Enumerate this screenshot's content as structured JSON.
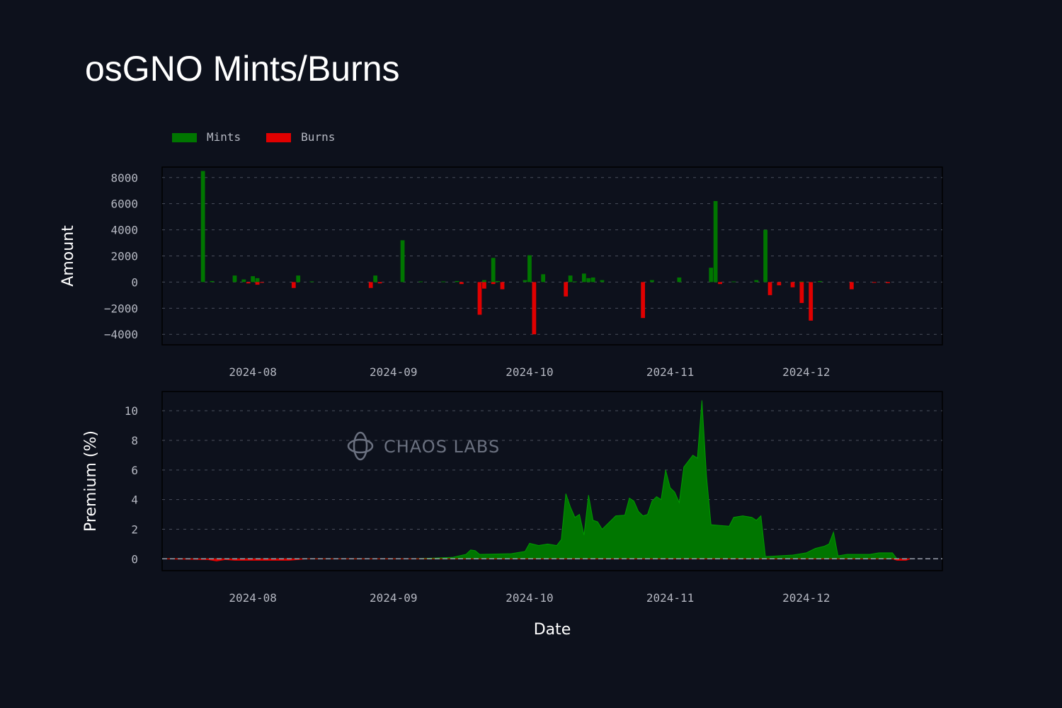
{
  "page": {
    "title": "osGNO Mints/Burns"
  },
  "colors": {
    "background": "#0d111c",
    "mints": "#007600",
    "burns": "#e00000",
    "grid": "#4a4f5c",
    "text": "#b5b8c2"
  },
  "legend": {
    "items": [
      {
        "label": "Mints",
        "color": "#007600"
      },
      {
        "label": "Burns",
        "color": "#e00000"
      }
    ]
  },
  "watermark": {
    "text": "CHAOS LABS"
  },
  "chart_data": [
    {
      "type": "bar",
      "ylabel": "Amount",
      "xlabel": "",
      "ylim": [
        -4800,
        8800
      ],
      "yticks": [
        8000,
        6000,
        4000,
        2000,
        0,
        -2000,
        -4000
      ],
      "ytick_labels": [
        "8000",
        "6000",
        "4000",
        "2000",
        "0",
        "−2000",
        "−4000"
      ],
      "xlim": [
        "2024-07-12",
        "2024-12-31"
      ],
      "xticks": [
        "2024-08-01",
        "2024-09-01",
        "2024-10-01",
        "2024-11-01",
        "2024-12-01"
      ],
      "xtick_labels": [
        "2024-08",
        "2024-09",
        "2024-10",
        "2024-11",
        "2024-12"
      ],
      "grid": true,
      "legend_placement": "top-left",
      "series": [
        {
          "name": "Mints",
          "color": "#007600",
          "points": [
            [
              "2024-07-21",
              8500
            ],
            [
              "2024-07-23",
              80
            ],
            [
              "2024-07-28",
              500
            ],
            [
              "2024-07-30",
              200
            ],
            [
              "2024-08-01",
              450
            ],
            [
              "2024-08-02",
              300
            ],
            [
              "2024-08-11",
              500
            ],
            [
              "2024-08-14",
              50
            ],
            [
              "2024-08-28",
              500
            ],
            [
              "2024-09-03",
              3200
            ],
            [
              "2024-09-07",
              50
            ],
            [
              "2024-09-12",
              50
            ],
            [
              "2024-09-15",
              80
            ],
            [
              "2024-09-21",
              150
            ],
            [
              "2024-09-23",
              1850
            ],
            [
              "2024-09-24",
              80
            ],
            [
              "2024-09-30",
              150
            ],
            [
              "2024-10-01",
              2050
            ],
            [
              "2024-10-04",
              600
            ],
            [
              "2024-10-10",
              500
            ],
            [
              "2024-10-11",
              50
            ],
            [
              "2024-10-13",
              650
            ],
            [
              "2024-10-14",
              300
            ],
            [
              "2024-10-15",
              350
            ],
            [
              "2024-10-17",
              150
            ],
            [
              "2024-10-28",
              150
            ],
            [
              "2024-11-03",
              350
            ],
            [
              "2024-11-10",
              1100
            ],
            [
              "2024-11-11",
              6200
            ],
            [
              "2024-11-15",
              50
            ],
            [
              "2024-11-20",
              150
            ],
            [
              "2024-11-22",
              4000
            ],
            [
              "2024-11-30",
              50
            ],
            [
              "2024-12-04",
              80
            ]
          ]
        },
        {
          "name": "Burns",
          "color": "#e00000",
          "points": [
            [
              "2024-07-31",
              -100
            ],
            [
              "2024-08-02",
              -200
            ],
            [
              "2024-08-03",
              -50
            ],
            [
              "2024-08-10",
              -450
            ],
            [
              "2024-08-27",
              -450
            ],
            [
              "2024-08-29",
              -100
            ],
            [
              "2024-09-16",
              -150
            ],
            [
              "2024-09-20",
              -2500
            ],
            [
              "2024-09-21",
              -500
            ],
            [
              "2024-09-23",
              -150
            ],
            [
              "2024-09-25",
              -550
            ],
            [
              "2024-10-02",
              -4000
            ],
            [
              "2024-10-09",
              -1100
            ],
            [
              "2024-10-26",
              -2750
            ],
            [
              "2024-11-12",
              -150
            ],
            [
              "2024-11-23",
              -1000
            ],
            [
              "2024-11-25",
              -250
            ],
            [
              "2024-11-28",
              -400
            ],
            [
              "2024-11-30",
              -1600
            ],
            [
              "2024-12-02",
              -2950
            ],
            [
              "2024-12-11",
              -550
            ],
            [
              "2024-12-16",
              -50
            ],
            [
              "2024-12-19",
              -80
            ]
          ]
        }
      ]
    },
    {
      "type": "area",
      "ylabel": "Premium (%)",
      "xlabel": "Date",
      "ylim": [
        -0.8,
        11.3
      ],
      "yticks": [
        0,
        2,
        4,
        6,
        8,
        10
      ],
      "ytick_labels": [
        "0",
        "2",
        "4",
        "6",
        "8",
        "10"
      ],
      "xlim": [
        "2024-07-12",
        "2024-12-31"
      ],
      "xticks": [
        "2024-08-01",
        "2024-09-01",
        "2024-10-01",
        "2024-11-01",
        "2024-12-01"
      ],
      "xtick_labels": [
        "2024-08",
        "2024-09",
        "2024-10",
        "2024-11",
        "2024-12"
      ],
      "grid": true,
      "series": [
        {
          "name": "Premium",
          "points": [
            [
              "2024-07-12",
              0.0
            ],
            [
              "2024-07-22",
              -0.05
            ],
            [
              "2024-07-24",
              -0.15
            ],
            [
              "2024-07-26",
              -0.05
            ],
            [
              "2024-07-28",
              -0.1
            ],
            [
              "2024-08-03",
              -0.1
            ],
            [
              "2024-08-09",
              -0.1
            ],
            [
              "2024-08-13",
              0.0
            ],
            [
              "2024-09-05",
              0.0
            ],
            [
              "2024-09-10",
              0.05
            ],
            [
              "2024-09-14",
              0.1
            ],
            [
              "2024-09-17",
              0.3
            ],
            [
              "2024-09-18",
              0.6
            ],
            [
              "2024-09-19",
              0.55
            ],
            [
              "2024-09-20",
              0.3
            ],
            [
              "2024-09-27",
              0.35
            ],
            [
              "2024-09-30",
              0.5
            ],
            [
              "2024-10-01",
              1.05
            ],
            [
              "2024-10-03",
              0.9
            ],
            [
              "2024-10-05",
              1.0
            ],
            [
              "2024-10-07",
              0.9
            ],
            [
              "2024-10-08",
              1.3
            ],
            [
              "2024-10-09",
              4.4
            ],
            [
              "2024-10-10",
              3.5
            ],
            [
              "2024-10-11",
              2.8
            ],
            [
              "2024-10-12",
              3.0
            ],
            [
              "2024-10-13",
              1.6
            ],
            [
              "2024-10-14",
              4.3
            ],
            [
              "2024-10-15",
              2.6
            ],
            [
              "2024-10-16",
              2.5
            ],
            [
              "2024-10-17",
              2.0
            ],
            [
              "2024-10-18",
              2.3
            ],
            [
              "2024-10-20",
              2.9
            ],
            [
              "2024-10-22",
              2.95
            ],
            [
              "2024-10-23",
              4.1
            ],
            [
              "2024-10-24",
              3.9
            ],
            [
              "2024-10-25",
              3.2
            ],
            [
              "2024-10-26",
              2.9
            ],
            [
              "2024-10-27",
              3.0
            ],
            [
              "2024-10-28",
              3.9
            ],
            [
              "2024-10-29",
              4.2
            ],
            [
              "2024-10-30",
              4.0
            ],
            [
              "2024-10-31",
              6.0
            ],
            [
              "2024-11-01",
              4.8
            ],
            [
              "2024-11-02",
              4.5
            ],
            [
              "2024-11-03",
              3.8
            ],
            [
              "2024-11-04",
              6.2
            ],
            [
              "2024-11-05",
              6.6
            ],
            [
              "2024-11-06",
              7.0
            ],
            [
              "2024-11-07",
              6.8
            ],
            [
              "2024-11-08",
              10.7
            ],
            [
              "2024-11-09",
              5.6
            ],
            [
              "2024-11-10",
              2.3
            ],
            [
              "2024-11-14",
              2.2
            ],
            [
              "2024-11-15",
              2.8
            ],
            [
              "2024-11-17",
              2.9
            ],
            [
              "2024-11-19",
              2.8
            ],
            [
              "2024-11-20",
              2.6
            ],
            [
              "2024-11-21",
              2.9
            ],
            [
              "2024-11-22",
              0.15
            ],
            [
              "2024-11-28",
              0.25
            ],
            [
              "2024-12-01",
              0.4
            ],
            [
              "2024-12-03",
              0.7
            ],
            [
              "2024-12-05",
              0.85
            ],
            [
              "2024-12-06",
              1.0
            ],
            [
              "2024-12-07",
              1.8
            ],
            [
              "2024-12-08",
              0.2
            ],
            [
              "2024-12-10",
              0.3
            ],
            [
              "2024-12-15",
              0.3
            ],
            [
              "2024-12-17",
              0.4
            ],
            [
              "2024-12-20",
              0.4
            ],
            [
              "2024-12-21",
              -0.1
            ],
            [
              "2024-12-23",
              -0.1
            ],
            [
              "2024-12-24",
              0.0
            ]
          ]
        }
      ]
    }
  ]
}
